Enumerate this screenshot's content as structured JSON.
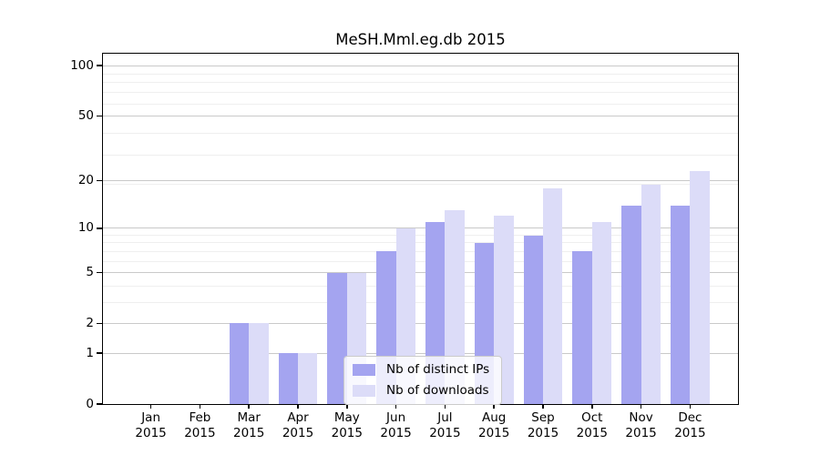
{
  "chart_data": {
    "type": "bar",
    "title": "MeSH.Mml.eg.db 2015",
    "categories": [
      "Jan 2015",
      "Feb 2015",
      "Mar 2015",
      "Apr 2015",
      "May 2015",
      "Jun 2015",
      "Jul 2015",
      "Aug 2015",
      "Sep 2015",
      "Oct 2015",
      "Nov 2015",
      "Dec 2015"
    ],
    "series": [
      {
        "name": "Nb of distinct IPs",
        "color": "#a4a4f0",
        "values": [
          0,
          0,
          2,
          1,
          5,
          7,
          11,
          8,
          9,
          7,
          14,
          14
        ]
      },
      {
        "name": "Nb of downloads",
        "color": "#dcdcf8",
        "values": [
          0,
          0,
          2,
          1,
          5,
          10,
          13,
          12,
          18,
          11,
          19,
          23
        ]
      }
    ],
    "xlabel": "",
    "ylabel": "",
    "yscale": "log1p",
    "y_ticks": [
      0,
      1,
      2,
      5,
      10,
      20,
      50,
      100
    ],
    "y_tick_labels": [
      "0",
      "1",
      "2",
      "5",
      "10",
      "20",
      "50",
      "100"
    ],
    "ylim": [
      0,
      118
    ],
    "grid": true,
    "legend_position": "inside-bottom-center",
    "colors": {
      "background": "#ffffff",
      "text": "#000000",
      "axis": "#000000",
      "grid_major": "#c9c9c9",
      "grid_minor": "#efefef"
    }
  }
}
